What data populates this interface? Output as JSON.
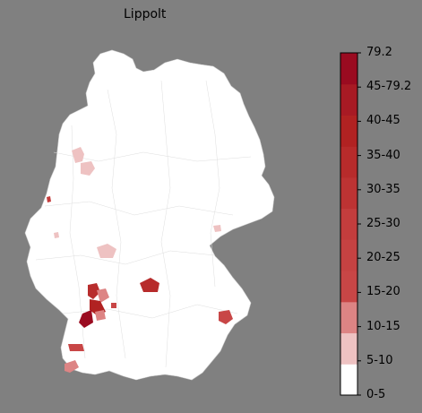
{
  "map": {
    "title": "Lippolt",
    "land_color": "#ffffff",
    "background_color": "#808080"
  },
  "legend": {
    "labels": [
      "0-5",
      "5-10",
      "10-15",
      "15-20",
      "20-25",
      "25-30",
      "30-35",
      "35-40",
      "40-45",
      "45-79.2",
      "79.2"
    ],
    "bands": [
      {
        "from": "0",
        "to": "5",
        "color": "#ffffff"
      },
      {
        "from": "5",
        "to": "10",
        "color": "#eec2c2"
      },
      {
        "from": "10",
        "to": "15",
        "color": "#dd8484"
      },
      {
        "from": "15",
        "to": "20",
        "color": "#c84646"
      },
      {
        "from": "20",
        "to": "25",
        "color": "#c64242"
      },
      {
        "from": "25",
        "to": "30",
        "color": "#c33d3d"
      },
      {
        "from": "30",
        "to": "35",
        "color": "#bd3333"
      },
      {
        "from": "35",
        "to": "40",
        "color": "#b72b2b"
      },
      {
        "from": "40",
        "to": "45",
        "color": "#b12222"
      },
      {
        "from": "45",
        "to": "79.2",
        "color": "#a81a24"
      },
      {
        "from": "79.2",
        "to": "79.2",
        "color": "#9a0b20"
      }
    ]
  }
}
